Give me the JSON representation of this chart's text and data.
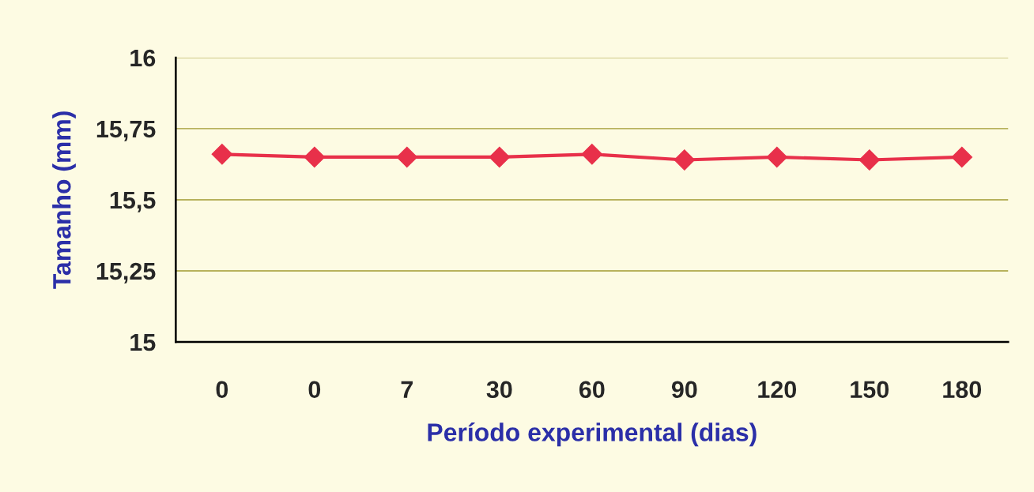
{
  "chart_data": {
    "type": "line",
    "xlabel": "Período experimental (dias)",
    "ylabel": "Tamanho (mm)",
    "categories": [
      "0",
      "0",
      "7",
      "30",
      "60",
      "90",
      "120",
      "150",
      "180"
    ],
    "series": [
      {
        "color": "#e8304a",
        "values": [
          15.66,
          15.65,
          15.65,
          15.65,
          15.66,
          15.64,
          15.65,
          15.64,
          15.65
        ]
      }
    ],
    "ylim": [
      15,
      16
    ],
    "yticks": [
      15,
      {
        "value": 15.25,
        "label": "15,25"
      },
      {
        "value": 15.5,
        "label": "15,5"
      },
      {
        "value": 15.75,
        "label": "15,75"
      },
      16
    ],
    "grid": "y",
    "marker": "diamond",
    "line_style": "solid",
    "legend": false
  }
}
